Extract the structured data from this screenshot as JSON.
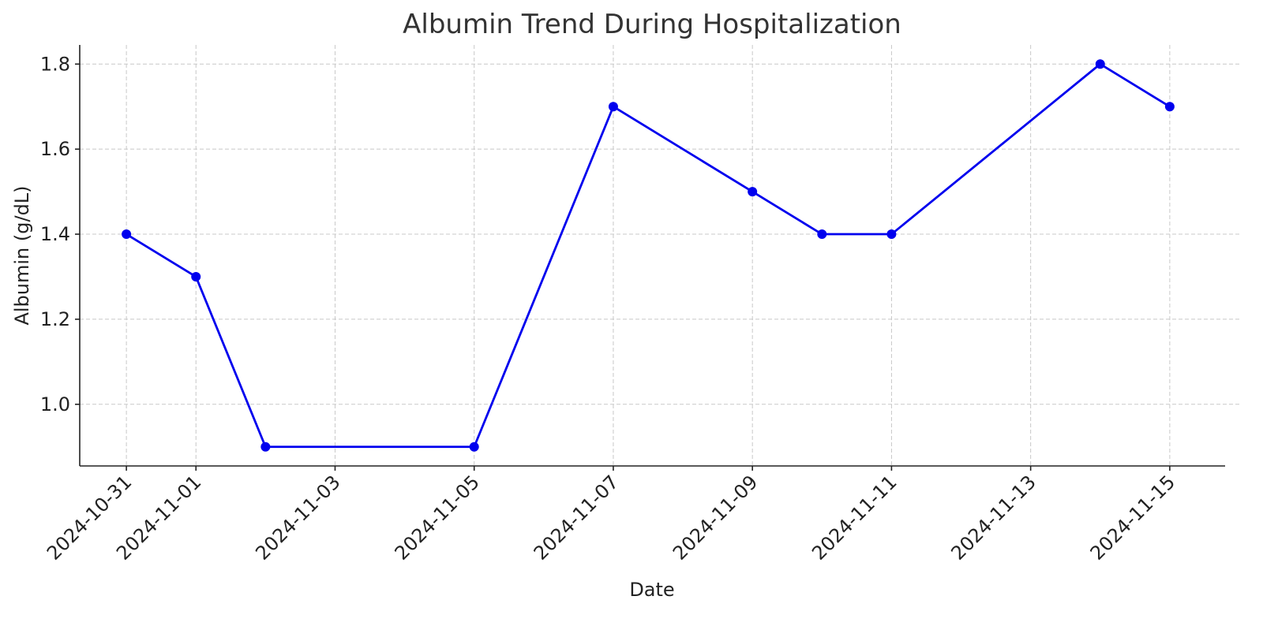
{
  "chart_data": {
    "type": "line",
    "title": "Albumin Trend During Hospitalization",
    "xlabel": "Date",
    "ylabel": "Albumin (g/dL)",
    "x": [
      "2024-10-31",
      "2024-11-01",
      "2024-11-02",
      "2024-11-05",
      "2024-11-07",
      "2024-11-09",
      "2024-11-10",
      "2024-11-11",
      "2024-11-14",
      "2024-11-15"
    ],
    "values": [
      1.4,
      1.3,
      0.9,
      0.9,
      1.7,
      1.5,
      1.4,
      1.4,
      1.8,
      1.7
    ],
    "color": "#0000ee",
    "xlim": [
      "2024-10-30",
      "2024-11-16"
    ],
    "xticks": [
      "2024-10-31",
      "2024-11-01",
      "2024-11-03",
      "2024-11-05",
      "2024-11-07",
      "2024-11-09",
      "2024-11-11",
      "2024-11-13",
      "2024-11-15"
    ],
    "ylim": [
      0.855,
      1.845
    ],
    "yticks": [
      {
        "value": 1.0,
        "label": "1.0"
      },
      1.2,
      1.4,
      1.6,
      1.8
    ],
    "grid": true
  }
}
